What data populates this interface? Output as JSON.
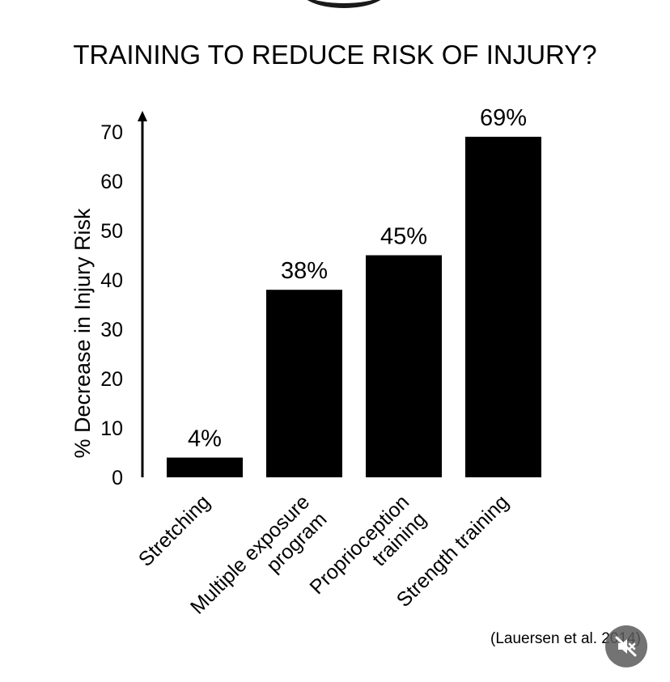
{
  "chart_data": {
    "type": "bar",
    "title": "TRAINING TO REDUCE RISK OF INJURY?",
    "ylabel": "% Decrease in Injury Risk",
    "xlabel": "",
    "categories": [
      [
        "Stretching"
      ],
      [
        "Multiple exposure",
        "program"
      ],
      [
        "Proprioception",
        "training"
      ],
      [
        "Strength training"
      ]
    ],
    "values": [
      4,
      38,
      45,
      69
    ],
    "data_labels": [
      "4%",
      "38%",
      "45%",
      "69%"
    ],
    "yticks": [
      0,
      10,
      20,
      30,
      40,
      50,
      60,
      70
    ],
    "ylim": [
      0,
      73
    ],
    "bar_color": "#000000",
    "grid": false,
    "legend": "none"
  },
  "citation": "(Lauersen et al. 2014)",
  "mute_button": {
    "icon": "speaker-muted-icon",
    "background": "#5a5a5a"
  }
}
